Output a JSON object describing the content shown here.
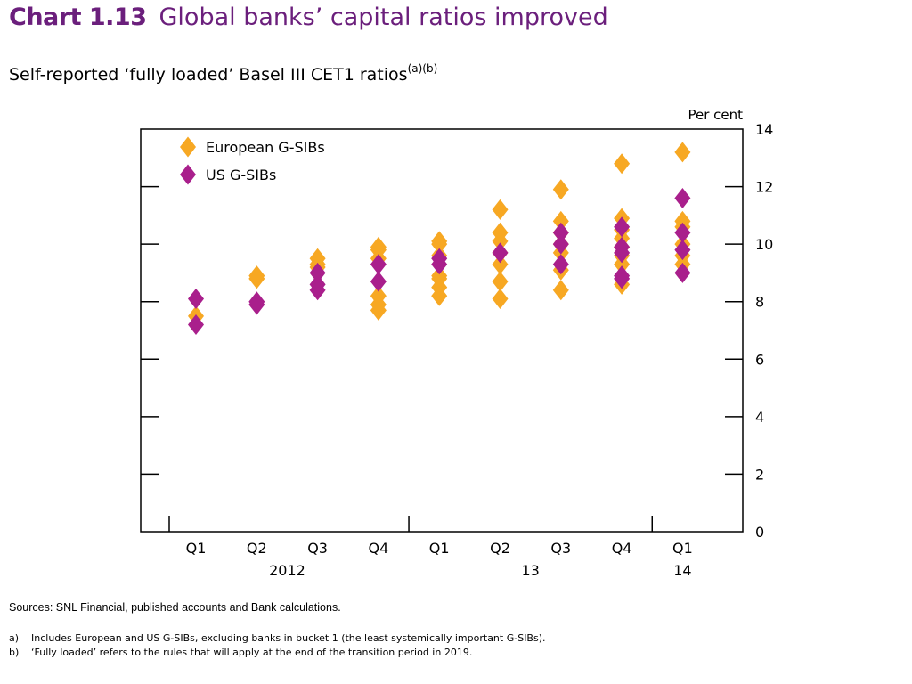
{
  "header": {
    "chart_number": "Chart 1.13",
    "title": "Global banks’ capital ratios improved",
    "subtitle": "Self-reported ‘fully loaded’ Basel III CET1 ratios",
    "subtitle_superscript": "(a)(b)"
  },
  "colors": {
    "title": "#6b1f7c",
    "european": "#f7a823",
    "us": "#a91f8c",
    "axis": "#000000"
  },
  "chart_data": {
    "type": "scatter",
    "unit_label": "Per cent",
    "ylim": [
      0,
      14
    ],
    "yticks": [
      0,
      2,
      4,
      6,
      8,
      10,
      12,
      14
    ],
    "ytick_labels": [
      "0",
      "2",
      "4",
      "6",
      "8",
      "10",
      "12",
      "14"
    ],
    "categories": [
      "Q1",
      "Q2",
      "Q3",
      "Q4",
      "Q1",
      "Q2",
      "Q3",
      "Q4",
      "Q1"
    ],
    "year_labels": [
      {
        "label": "2012",
        "category_index": 1.5
      },
      {
        "label": "13",
        "category_index": 5.5
      },
      {
        "label": "14",
        "category_index": 8
      }
    ],
    "year_separators_after": [
      3,
      7
    ],
    "grid": false,
    "legend_position": "top-left",
    "series": [
      {
        "name": "European G-SIBs",
        "marker": "diamond",
        "color": "#f7a823",
        "points": [
          [
            0,
            7.5
          ],
          [
            1,
            8.9
          ],
          [
            1,
            8.8
          ],
          [
            2,
            9.5
          ],
          [
            2,
            9.3
          ],
          [
            2,
            9.2
          ],
          [
            3,
            9.9
          ],
          [
            3,
            9.8
          ],
          [
            3,
            9.5
          ],
          [
            3,
            8.2
          ],
          [
            3,
            7.9
          ],
          [
            3,
            7.7
          ],
          [
            4,
            10.1
          ],
          [
            4,
            10.0
          ],
          [
            4,
            9.6
          ],
          [
            4,
            8.9
          ],
          [
            4,
            8.8
          ],
          [
            4,
            8.5
          ],
          [
            4,
            8.2
          ],
          [
            5,
            11.2
          ],
          [
            5,
            10.4
          ],
          [
            5,
            10.1
          ],
          [
            5,
            9.7
          ],
          [
            5,
            9.3
          ],
          [
            5,
            8.7
          ],
          [
            5,
            8.1
          ],
          [
            6,
            11.9
          ],
          [
            6,
            10.8
          ],
          [
            6,
            10.4
          ],
          [
            6,
            10.0
          ],
          [
            6,
            9.7
          ],
          [
            6,
            9.1
          ],
          [
            6,
            8.4
          ],
          [
            7,
            12.8
          ],
          [
            7,
            10.9
          ],
          [
            7,
            10.5
          ],
          [
            7,
            10.2
          ],
          [
            7,
            9.9
          ],
          [
            7,
            9.6
          ],
          [
            7,
            9.3
          ],
          [
            7,
            8.6
          ],
          [
            8,
            13.2
          ],
          [
            8,
            10.8
          ],
          [
            8,
            10.6
          ],
          [
            8,
            10.0
          ],
          [
            8,
            9.6
          ],
          [
            8,
            9.3
          ]
        ]
      },
      {
        "name": "US G-SIBs",
        "marker": "diamond",
        "color": "#a91f8c",
        "points": [
          [
            0,
            8.1
          ],
          [
            0,
            7.2
          ],
          [
            1,
            8.0
          ],
          [
            1,
            7.9
          ],
          [
            2,
            9.0
          ],
          [
            2,
            8.6
          ],
          [
            2,
            8.4
          ],
          [
            3,
            9.3
          ],
          [
            3,
            8.7
          ],
          [
            4,
            9.5
          ],
          [
            4,
            9.3
          ],
          [
            5,
            9.7
          ],
          [
            6,
            10.4
          ],
          [
            6,
            10.0
          ],
          [
            6,
            9.3
          ],
          [
            7,
            10.6
          ],
          [
            7,
            9.9
          ],
          [
            7,
            9.7
          ],
          [
            7,
            8.9
          ],
          [
            7,
            8.8
          ],
          [
            8,
            11.6
          ],
          [
            8,
            10.4
          ],
          [
            8,
            9.8
          ],
          [
            8,
            9.0
          ]
        ]
      }
    ]
  },
  "footer": {
    "sources": "Sources:  SNL Financial, published accounts and Bank calculations.",
    "notes": [
      {
        "mark": "a)",
        "text": "Includes European and US G-SIBs, excluding banks in bucket 1 (the least systemically important G-SIBs)."
      },
      {
        "mark": "b)",
        "text": "‘Fully loaded’ refers to the rules that will apply at the end of the transition period in 2019."
      }
    ]
  }
}
